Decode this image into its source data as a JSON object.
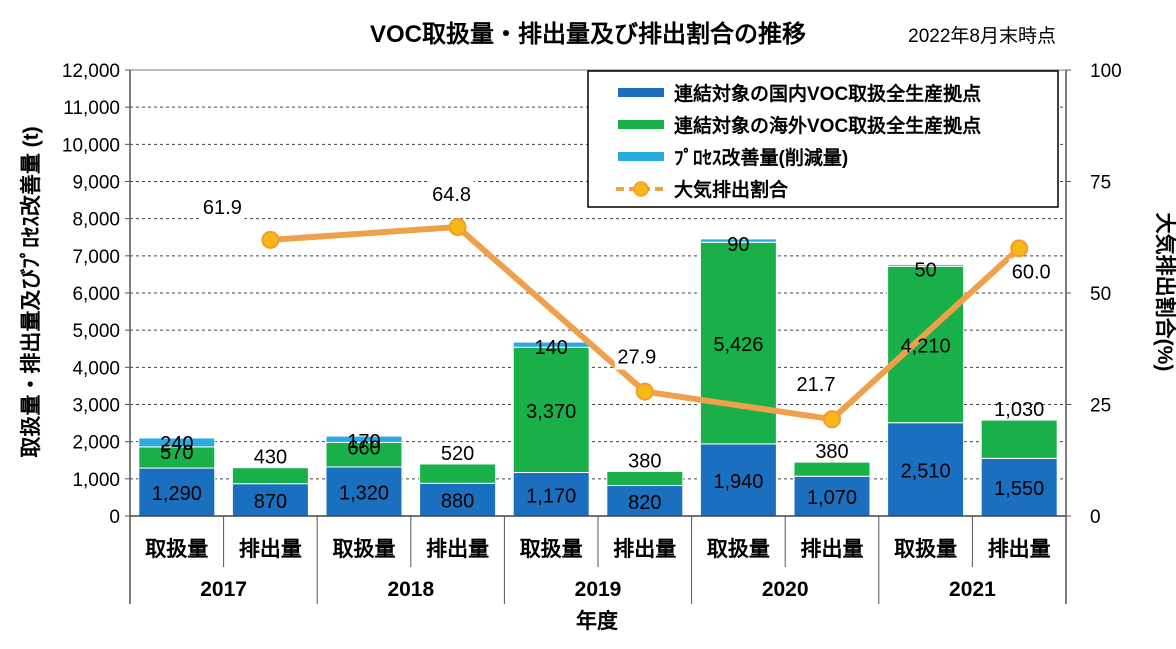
{
  "chart_data": {
    "type": "bar",
    "stacked": true,
    "title": "VOC取扱量・排出量及び排出割合の推移",
    "subtitle": "2022年8月末時点",
    "ylabel_left": "取扱量・排出量及びﾌﾟﾛｾｽ改善量 (t)",
    "ylabel_right": "大気排出割合(%)",
    "xlabel": "年度",
    "ylim_left": [
      0,
      12000
    ],
    "ylim_right": [
      0,
      100
    ],
    "left_ticks": [
      "0",
      "1,000",
      "2,000",
      "3,000",
      "4,000",
      "5,000",
      "6,000",
      "7,000",
      "8,000",
      "9,000",
      "10,000",
      "11,000",
      "12,000"
    ],
    "right_ticks": [
      "0",
      "25",
      "50",
      "75",
      "100"
    ],
    "years": [
      "2017",
      "2018",
      "2019",
      "2020",
      "2021"
    ],
    "categories": [
      "取扱量",
      "排出量",
      "取扱量",
      "排出量",
      "取扱量",
      "排出量",
      "取扱量",
      "排出量",
      "取扱量",
      "排出量"
    ],
    "series": [
      {
        "name": "連結対象の国内VOC取扱全生産拠点",
        "color": "#1b6fbf",
        "values": [
          1290,
          870,
          1320,
          880,
          1170,
          820,
          1940,
          1070,
          2510,
          1550
        ],
        "labels": [
          "1,290",
          "870",
          "1,320",
          "880",
          "1,170",
          "820",
          "1,940",
          "1,070",
          "2,510",
          "1,550"
        ]
      },
      {
        "name": "連結対象の海外VOC取扱全生産拠点",
        "color": "#19b04a",
        "values": [
          570,
          430,
          660,
          520,
          3370,
          380,
          5426,
          380,
          4210,
          1030
        ],
        "labels": [
          "570",
          "430",
          "660",
          "520",
          "3,370",
          "380",
          "5,426",
          "380",
          "4,210",
          "1,030"
        ]
      },
      {
        "name": "ﾌﾟﾛｾｽ改善量(削減量)",
        "color": "#29abe2",
        "values": [
          240,
          0,
          170,
          0,
          140,
          0,
          90,
          0,
          50,
          0
        ],
        "labels": [
          "240",
          "",
          "170",
          "",
          "140",
          "",
          "90",
          "",
          "50",
          ""
        ]
      }
    ],
    "line": {
      "name": "大気排出割合",
      "color": "#f0a04b",
      "marker_color": "#f7b718",
      "x_index": [
        1,
        3,
        5,
        7,
        9
      ],
      "values": [
        61.9,
        64.8,
        27.9,
        21.7,
        60.0
      ],
      "labels": [
        "61.9",
        "64.8",
        "27.9",
        "21.7",
        "60.0"
      ]
    }
  }
}
